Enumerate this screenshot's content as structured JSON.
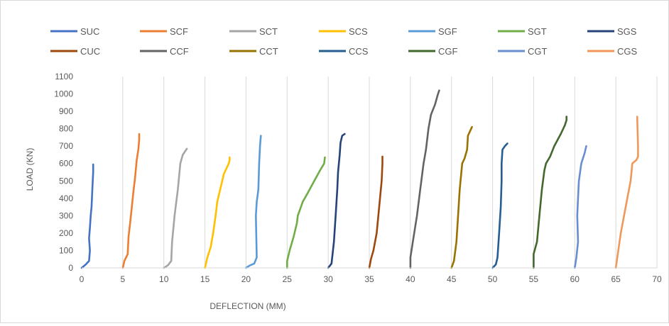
{
  "chart_data": {
    "type": "line",
    "title": "",
    "xlabel": "DEFLECTION (MM)",
    "ylabel": "LOAD (KN)",
    "xlim": [
      0,
      70
    ],
    "ylim": [
      0,
      1100
    ],
    "xticks": [
      "0",
      "5",
      "10",
      "15",
      "20",
      "25",
      "30",
      "35",
      "40",
      "45",
      "50",
      "55",
      "60",
      "65",
      "70"
    ],
    "yticks": [
      "0",
      "100",
      "200",
      "300",
      "400",
      "500",
      "600",
      "700",
      "800",
      "900",
      "1000",
      "1100"
    ],
    "grid": "vertical",
    "legend_position": "top",
    "series": [
      {
        "name": "SUC",
        "color": "#4472C4",
        "x": [
          0,
          0.5,
          0.9,
          1.0,
          0.9,
          1.0,
          1.1,
          1.2,
          1.3,
          1.4,
          1.4
        ],
        "y": [
          0,
          20,
          40,
          100,
          170,
          230,
          300,
          350,
          450,
          550,
          595
        ]
      },
      {
        "name": "SCF",
        "color": "#ED7D31",
        "x": [
          5,
          5.2,
          5.6,
          5.7,
          5.9,
          6.1,
          6.3,
          6.5,
          6.7,
          6.9,
          7.0,
          7.0
        ],
        "y": [
          0,
          40,
          80,
          180,
          260,
          350,
          440,
          520,
          620,
          680,
          740,
          770
        ]
      },
      {
        "name": "SCT",
        "color": "#A5A5A5",
        "x": [
          10,
          10.5,
          10.9,
          11.0,
          11.3,
          11.7,
          12.0,
          12.3,
          12.8
        ],
        "y": [
          0,
          15,
          40,
          150,
          300,
          450,
          600,
          650,
          685
        ]
      },
      {
        "name": "SCS",
        "color": "#FFC000",
        "x": [
          15,
          15.3,
          15.7,
          16.0,
          16.3,
          16.5,
          16.8,
          17.3,
          17.9,
          18.0,
          18.0
        ],
        "y": [
          0,
          60,
          120,
          200,
          300,
          380,
          440,
          540,
          600,
          620,
          635
        ]
      },
      {
        "name": "SGF",
        "color": "#5B9BD5",
        "x": [
          20,
          20.5,
          21.0,
          21.3,
          21.2,
          21.3,
          21.5,
          21.6,
          21.7,
          21.8
        ],
        "y": [
          0,
          15,
          25,
          60,
          300,
          380,
          450,
          600,
          700,
          760
        ]
      },
      {
        "name": "SGT",
        "color": "#70AD47",
        "x": [
          25,
          25.0,
          25.3,
          25.8,
          26.2,
          26.3,
          26.9,
          27.5,
          28.3,
          29.0,
          29.5,
          29.6
        ],
        "y": [
          0,
          40,
          100,
          180,
          260,
          300,
          380,
          430,
          500,
          560,
          600,
          635
        ]
      },
      {
        "name": "SGS",
        "color": "#264478",
        "x": [
          30,
          30.4,
          30.7,
          30.9,
          31.1,
          31.2,
          31.4,
          31.5,
          31.7,
          32.0
        ],
        "y": [
          0,
          25,
          150,
          300,
          450,
          550,
          650,
          720,
          760,
          770
        ]
      },
      {
        "name": "CUC",
        "color": "#9E480E",
        "x": [
          35,
          35.2,
          35.5,
          35.9,
          36.2,
          36.5,
          36.6,
          36.6
        ],
        "y": [
          0,
          50,
          100,
          200,
          350,
          500,
          600,
          640
        ]
      },
      {
        "name": "CCF",
        "color": "#636363",
        "x": [
          40,
          40.0,
          40.3,
          40.8,
          41.2,
          41.6,
          41.9,
          42.2,
          42.5,
          43.0,
          43.3,
          43.5
        ],
        "y": [
          0,
          60,
          150,
          300,
          450,
          600,
          680,
          800,
          880,
          940,
          990,
          1020
        ]
      },
      {
        "name": "CCT",
        "color": "#997300",
        "x": [
          45,
          45.3,
          45.6,
          45.8,
          46.0,
          46.3,
          46.6,
          46.9,
          47.0,
          47.3,
          47.5
        ],
        "y": [
          0,
          40,
          150,
          300,
          450,
          600,
          630,
          680,
          760,
          790,
          810
        ]
      },
      {
        "name": "CCS",
        "color": "#255E91",
        "x": [
          50,
          50.4,
          50.6,
          50.8,
          51.0,
          51.1,
          51.1,
          51.2,
          51.5,
          51.8
        ],
        "y": [
          0,
          20,
          60,
          200,
          350,
          500,
          600,
          680,
          700,
          715
        ]
      },
      {
        "name": "CGF",
        "color": "#43682B",
        "x": [
          55,
          55.0,
          55.4,
          55.7,
          56.0,
          56.3,
          56.5,
          57.0,
          57.5,
          58.3,
          58.8,
          59.0,
          59.0
        ],
        "y": [
          0,
          80,
          150,
          300,
          450,
          560,
          600,
          640,
          700,
          770,
          820,
          850,
          870
        ]
      },
      {
        "name": "CGT",
        "color": "#698ED0",
        "x": [
          60,
          60.2,
          60.4,
          60.3,
          60.4,
          60.5,
          60.8,
          61.2,
          61.4
        ],
        "y": [
          0,
          60,
          150,
          300,
          400,
          500,
          600,
          660,
          700
        ]
      },
      {
        "name": "CGS",
        "color": "#F1975A",
        "x": [
          65,
          65.3,
          65.6,
          66.0,
          66.4,
          66.8,
          67.0,
          67.5,
          67.7,
          67.7,
          67.6
        ],
        "y": [
          0,
          100,
          200,
          300,
          400,
          500,
          600,
          620,
          640,
          700,
          870
        ]
      }
    ]
  }
}
